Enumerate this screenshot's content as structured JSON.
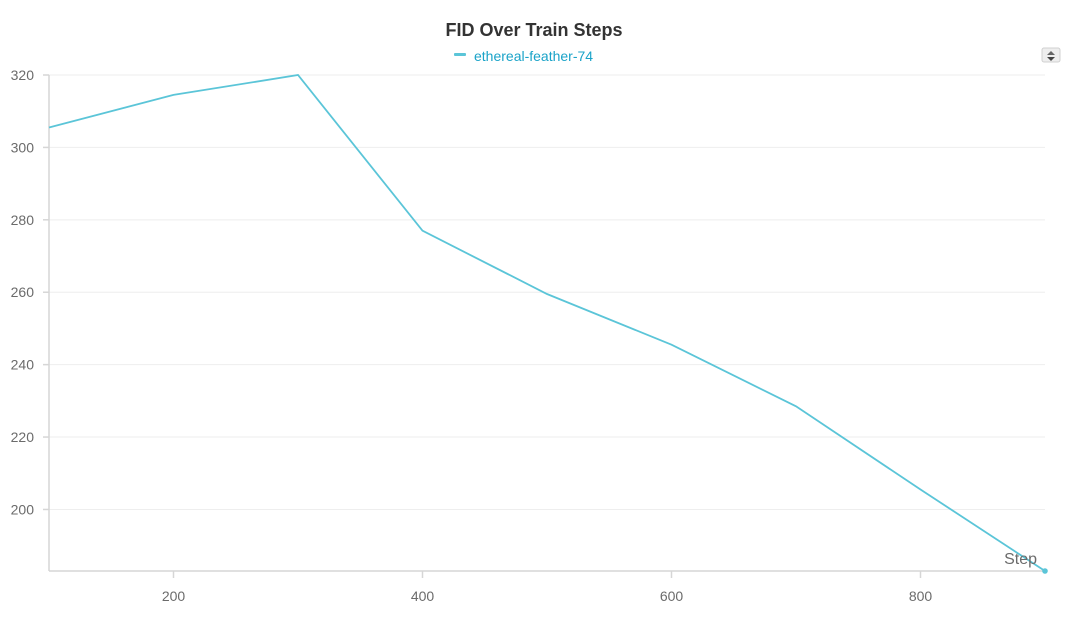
{
  "chart_data": {
    "type": "line",
    "title": "FID Over Train Steps",
    "xlabel": "Step",
    "ylabel": "",
    "xlim": [
      100,
      900
    ],
    "ylim": [
      183,
      320
    ],
    "xticks": [
      200,
      400,
      600,
      800
    ],
    "yticks": [
      200,
      220,
      240,
      260,
      280,
      300,
      320
    ],
    "grid": true,
    "legend_position": "top-center",
    "series": [
      {
        "name": "ethereal-feather-74",
        "color": "#5bc5d8",
        "x": [
          100,
          200,
          300,
          400,
          500,
          600,
          700,
          800,
          900
        ],
        "y": [
          305.5,
          314.5,
          320,
          277,
          259.5,
          245.5,
          228.5,
          205.5,
          183
        ]
      }
    ]
  },
  "legend_color": "#1aa3c8",
  "controls": {
    "sort_icon": "sort-updown-icon"
  }
}
